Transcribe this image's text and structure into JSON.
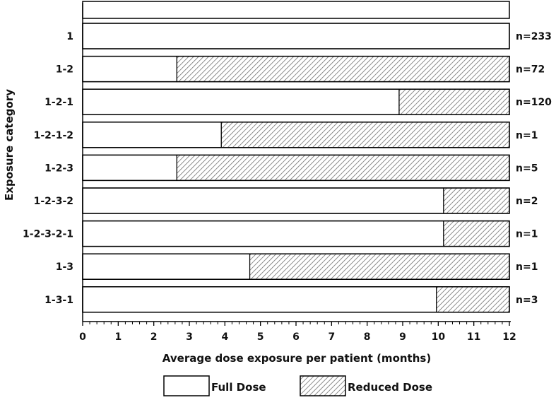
{
  "chart_data": {
    "type": "bar",
    "orientation": "horizontal",
    "stacked": true,
    "xlabel": "Average dose exposure per patient (months)",
    "ylabel": "Exposure category",
    "xlim": [
      0,
      12
    ],
    "x_ticks": [
      0,
      1,
      2,
      3,
      4,
      5,
      6,
      7,
      8,
      9,
      10,
      11,
      12
    ],
    "categories": [
      "1",
      "1-2",
      "1-2-1",
      "1-2-1-2",
      "1-2-3",
      "1-2-3-2",
      "1-2-3-2-1",
      "1-3",
      "1-3-1"
    ],
    "counts": [
      "n=233",
      "n=72",
      "n=120",
      "n=1",
      "n=5",
      "n=2",
      "n=1",
      "n=1",
      "n=3"
    ],
    "series": [
      {
        "name": "Full Dose",
        "pattern": "solid-white",
        "values": [
          12,
          2.65,
          8.9,
          3.9,
          2.65,
          10.15,
          10.15,
          4.7,
          9.95
        ]
      },
      {
        "name": "Reduced Dose",
        "pattern": "diagonal-hatch",
        "values": [
          0,
          9.35,
          3.1,
          8.1,
          9.35,
          1.85,
          1.85,
          7.3,
          2.05
        ]
      }
    ],
    "legend_position": "bottom",
    "grid": false
  }
}
